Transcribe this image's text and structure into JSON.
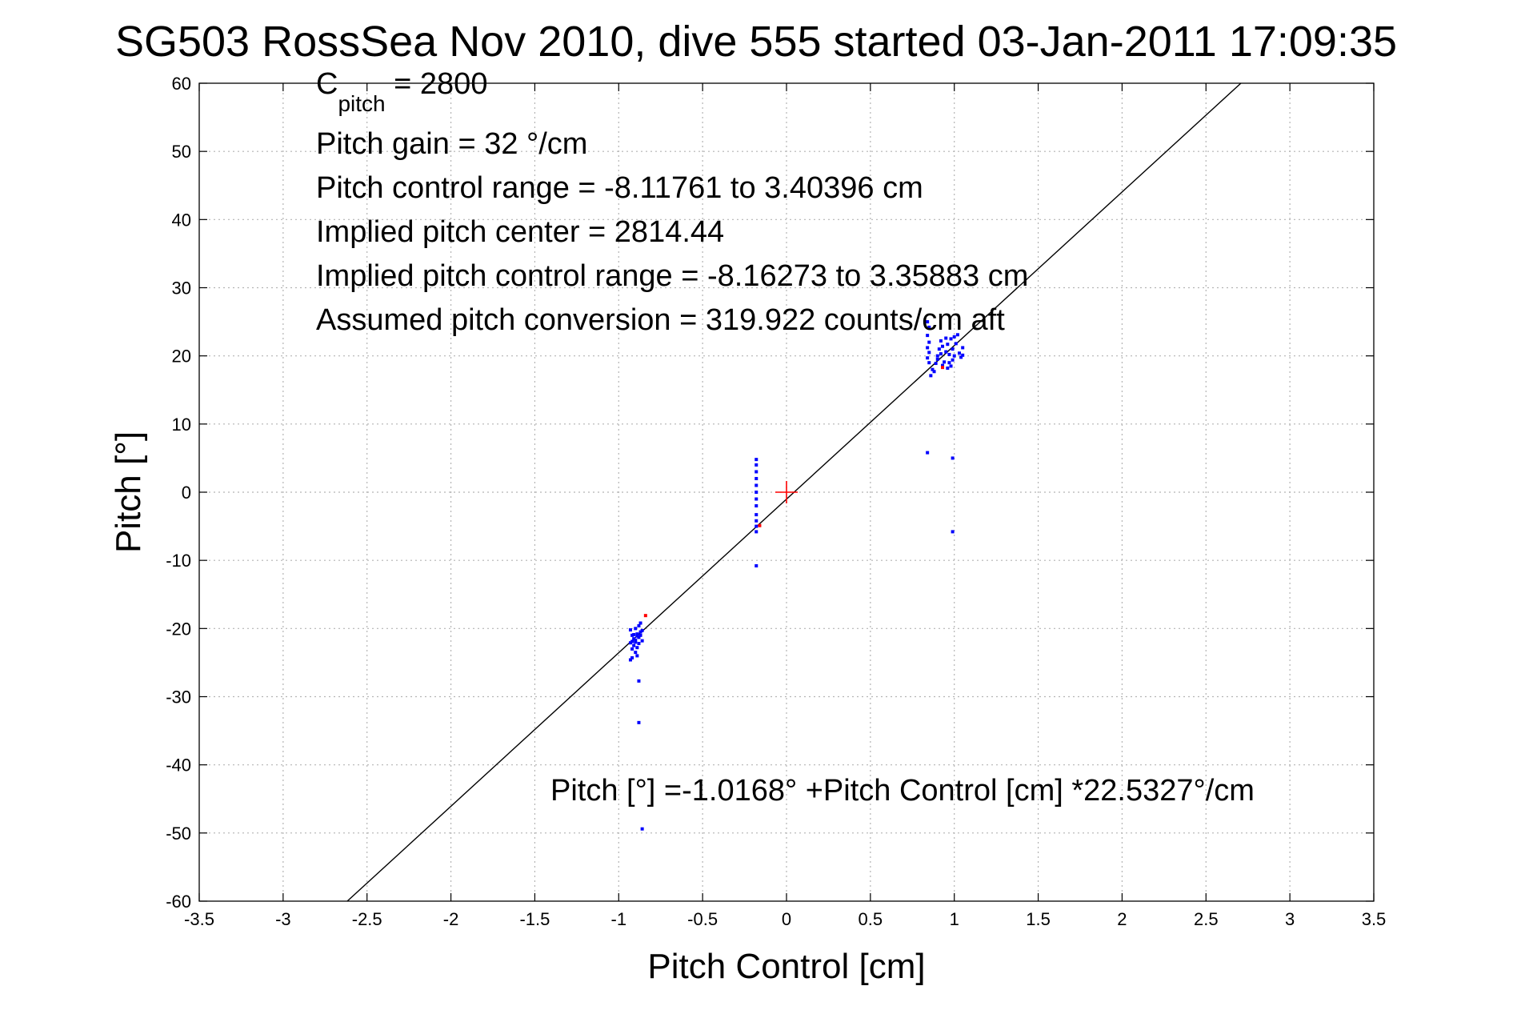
{
  "chart_data": {
    "type": "scatter",
    "title": "SG503 RossSea Nov 2010, dive 555 started 03-Jan-2011 17:09:35",
    "xlabel": "Pitch Control [cm]",
    "ylabel": "Pitch [°]",
    "xlim": [
      -3.5,
      3.5
    ],
    "ylim": [
      -60,
      60
    ],
    "xticks": [
      -3.5,
      -3,
      -2.5,
      -2,
      -1.5,
      -1,
      -0.5,
      0,
      0.5,
      1,
      1.5,
      2,
      2.5,
      3,
      3.5
    ],
    "yticks": [
      60,
      50,
      40,
      30,
      20,
      10,
      0,
      -10,
      -20,
      -30,
      -40,
      -50,
      -60
    ],
    "xtick_labels": [
      "-3.5",
      "-3",
      "-2.5",
      "-2",
      "-1.5",
      "-1",
      "-0.5",
      "0",
      "0.5",
      "1",
      "1.5",
      "2",
      "2.5",
      "3",
      "3.5"
    ],
    "ytick_labels": [
      "60",
      "50",
      "40",
      "30",
      "20",
      "10",
      "0",
      "-10",
      "-20",
      "-30",
      "-40",
      "-50",
      "-60"
    ],
    "grid": true,
    "colors": {
      "points": "#0000ff",
      "outliers": "#ff0000",
      "fit_line": "#000000",
      "center_marker": "#ff0000"
    },
    "annotations": {
      "c_pitch_main": "C",
      "c_pitch_sub": "pitch",
      "c_pitch_value": " = 2800",
      "pitch_gain": "Pitch gain = 32 °/cm",
      "pitch_control_range": "Pitch control range = -8.11761 to 3.40396 cm",
      "implied_pitch_center": "Implied pitch center = 2814.44",
      "implied_pitch_control_range": "Implied pitch control range = -8.16273 to 3.35883 cm",
      "assumed_pitch_conversion": "Assumed pitch conversion = 319.922 counts/cm aft",
      "fit_equation": "Pitch [°] =-1.0168° +Pitch Control [cm] *22.5327°/cm"
    },
    "fit_line": {
      "intercept": -1.0168,
      "slope": 22.5327
    },
    "center_marker": {
      "x": 0,
      "y": 0
    },
    "series": [
      {
        "color": "#0000ff",
        "points": [
          [
            -0.93,
            -20.2
          ],
          [
            -0.92,
            -21.0
          ],
          [
            -0.91,
            -21.5
          ],
          [
            -0.9,
            -22.0
          ],
          [
            -0.89,
            -20.8
          ],
          [
            -0.88,
            -21.3
          ],
          [
            -0.87,
            -20.5
          ],
          [
            -0.86,
            -21.8
          ],
          [
            -0.9,
            -20.0
          ],
          [
            -0.91,
            -22.5
          ],
          [
            -0.92,
            -23.0
          ],
          [
            -0.89,
            -22.8
          ],
          [
            -0.88,
            -19.6
          ],
          [
            -0.87,
            -19.2
          ],
          [
            -0.9,
            -23.5
          ],
          [
            -0.92,
            -24.3
          ],
          [
            -0.93,
            -24.6
          ],
          [
            -0.89,
            -21.1
          ],
          [
            -0.86,
            -20.3
          ],
          [
            -0.91,
            -20.9
          ],
          [
            -0.9,
            -21.7
          ],
          [
            -0.88,
            -22.2
          ],
          [
            -0.87,
            -21.0
          ],
          [
            -0.93,
            -22.1
          ],
          [
            -0.92,
            -21.9
          ],
          [
            -0.89,
            -24.0
          ],
          [
            -0.88,
            -27.7
          ],
          [
            -0.88,
            -33.8
          ],
          [
            -0.86,
            -49.4
          ],
          [
            -0.18,
            4.8
          ],
          [
            -0.18,
            4.0
          ],
          [
            -0.18,
            3.0
          ],
          [
            -0.18,
            2.0
          ],
          [
            -0.18,
            1.0
          ],
          [
            -0.18,
            0.0
          ],
          [
            -0.18,
            -1.0
          ],
          [
            -0.18,
            -2.0
          ],
          [
            -0.18,
            -3.3
          ],
          [
            -0.18,
            -4.2
          ],
          [
            -0.18,
            -5.0
          ],
          [
            -0.18,
            -5.8
          ],
          [
            -0.18,
            -10.8
          ],
          [
            0.84,
            25.0
          ],
          [
            0.85,
            24.2
          ],
          [
            0.84,
            23.0
          ],
          [
            0.85,
            22.0
          ],
          [
            0.84,
            21.2
          ],
          [
            0.85,
            20.5
          ],
          [
            0.84,
            19.7
          ],
          [
            0.85,
            19.0
          ],
          [
            0.87,
            18.0
          ],
          [
            0.86,
            17.1
          ],
          [
            0.88,
            17.7
          ],
          [
            0.89,
            18.9
          ],
          [
            0.9,
            20.0
          ],
          [
            0.91,
            21.0
          ],
          [
            0.9,
            19.5
          ],
          [
            0.92,
            20.3
          ],
          [
            0.93,
            21.4
          ],
          [
            0.94,
            19.1
          ],
          [
            0.95,
            20.6
          ],
          [
            0.96,
            21.7
          ],
          [
            0.97,
            20.2
          ],
          [
            0.97,
            19.0
          ],
          [
            0.98,
            18.5
          ],
          [
            0.98,
            22.5
          ],
          [
            0.99,
            21.0
          ],
          [
            1.0,
            20.0
          ],
          [
            1.0,
            22.8
          ],
          [
            1.02,
            23.1
          ],
          [
            1.03,
            20.4
          ],
          [
            1.04,
            19.8
          ],
          [
            1.05,
            21.2
          ],
          [
            1.05,
            20.1
          ],
          [
            0.96,
            18.2
          ],
          [
            0.93,
            18.6
          ],
          [
            0.99,
            19.4
          ],
          [
            1.01,
            21.8
          ],
          [
            0.92,
            22.2
          ],
          [
            0.95,
            22.6
          ],
          [
            0.84,
            5.8
          ],
          [
            0.99,
            5.0
          ],
          [
            0.99,
            -5.8
          ]
        ]
      },
      {
        "color": "#ff0000",
        "points": [
          [
            -0.84,
            -18.1
          ],
          [
            -0.16,
            -4.9
          ],
          [
            0.93,
            18.3
          ]
        ]
      }
    ]
  }
}
